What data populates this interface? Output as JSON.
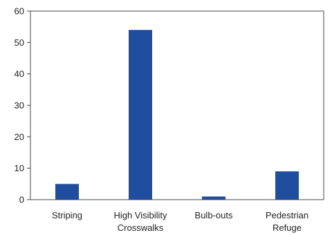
{
  "chart_data": {
    "type": "bar",
    "title": "",
    "xlabel": "",
    "ylabel": "",
    "categories": [
      [
        "Striping"
      ],
      [
        "High Visibility",
        "Crosswalks"
      ],
      [
        "Bulb-outs"
      ],
      [
        "Pedestrian",
        "Refuge"
      ]
    ],
    "values": [
      5,
      54,
      1,
      9
    ],
    "ylim": [
      0,
      60
    ],
    "yticks": [
      0,
      10,
      20,
      30,
      40,
      50,
      60
    ],
    "grid": false,
    "legend": "none",
    "bar_color": "#1f4e9e",
    "axis_color": "#444444"
  }
}
